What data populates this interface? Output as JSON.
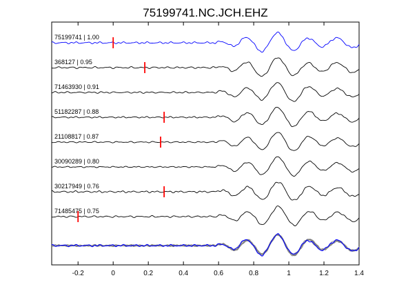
{
  "chart_data": {
    "type": "line",
    "title": "75199741.NC.JCH.EHZ",
    "xlabel": "",
    "ylabel": "",
    "xlim": [
      -0.35,
      1.4
    ],
    "x_ticks": [
      -0.2,
      0,
      0.2,
      0.4,
      0.6,
      0.8,
      1,
      1.2,
      1.4
    ],
    "x_tick_labels": [
      "-0.2",
      "0",
      "0.2",
      "0.4",
      "0.6",
      "0.8",
      "1",
      "1.2",
      "1.4"
    ],
    "grid": false,
    "legend": "none",
    "colors": {
      "reference": "#0000ff",
      "trace": "#000000",
      "pick": "#ff0000",
      "stack_gray": "#808080"
    },
    "traces": [
      {
        "label": "75199741 | 1.00",
        "pick_time": 0.0,
        "color": "#0000ff"
      },
      {
        "label": "368127 | 0.95",
        "pick_time": 0.18,
        "color": "#000000"
      },
      {
        "label": "71463930 | 0.91",
        "pick_time": null,
        "color": "#000000"
      },
      {
        "label": "51182287 | 0.88",
        "pick_time": 0.29,
        "color": "#000000"
      },
      {
        "label": "21108817 | 0.87",
        "pick_time": 0.27,
        "color": "#000000"
      },
      {
        "label": "30090289 | 0.80",
        "pick_time": null,
        "color": "#000000"
      },
      {
        "label": "30217949 | 0.76",
        "pick_time": 0.29,
        "color": "#000000"
      },
      {
        "label": "71485475 | 0.75",
        "pick_time": -0.2,
        "color": "#000000"
      }
    ],
    "stack_overlay": true
  }
}
